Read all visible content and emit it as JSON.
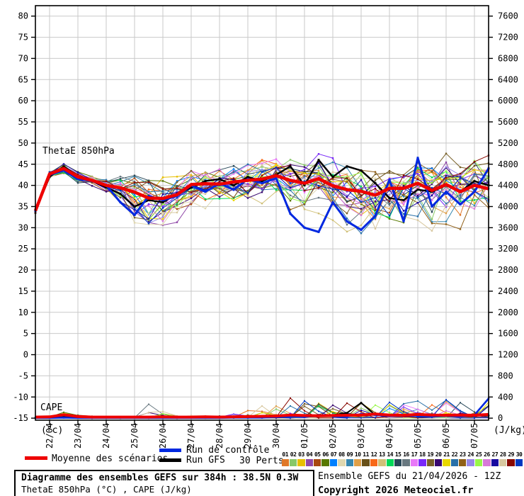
{
  "chart_data": {
    "type": "line",
    "title_annotation": "ThetaE 850hPa",
    "cape_annotation": "CAPE",
    "y_left_unit": "(°c)",
    "y_right_unit": "(J/kg)",
    "y_left_ticks": [
      80,
      75,
      70,
      65,
      60,
      55,
      50,
      45,
      40,
      35,
      30,
      25,
      20,
      15,
      10,
      5,
      0,
      -5,
      -10,
      -15
    ],
    "y_right_ticks": [
      7600,
      7200,
      6800,
      6400,
      6000,
      5600,
      5200,
      4800,
      4400,
      4000,
      3600,
      3200,
      2800,
      2400,
      2000,
      1600,
      1200,
      800,
      400,
      0
    ],
    "x_tick_labels": [
      "22/04",
      "23/04",
      "24/04",
      "25/04",
      "26/04",
      "27/04",
      "28/04",
      "29/04",
      "30/04",
      "01/05",
      "02/05",
      "03/05",
      "04/05",
      "05/05",
      "06/05",
      "07/05"
    ],
    "time_step_hours": 12,
    "forecast_hours": 384,
    "grid": true,
    "colors": {
      "mean": "#ee0000",
      "control": "#0028e0",
      "gfs": "#000000",
      "grid": "#c9c9c9",
      "axis": "#000000"
    },
    "thetae_850hpa_c": {
      "mean": [
        34,
        42.7,
        44,
        42,
        41.2,
        40,
        39.4,
        38.4,
        37,
        36.9,
        37.8,
        40.2,
        40.4,
        40.3,
        40.8,
        41.2,
        41.5,
        42.3,
        41.2,
        40.5,
        41.6,
        39.9,
        39,
        38.6,
        37.7,
        39.3,
        39.3,
        40.5,
        38.8,
        40.2,
        38.5,
        40,
        39.2
      ],
      "control": [
        34,
        42.5,
        43.5,
        41.5,
        41,
        40,
        36,
        33,
        37.5,
        36.5,
        37.5,
        40,
        38.5,
        40.5,
        39,
        41.5,
        40.5,
        41.7,
        33.3,
        30,
        29,
        36,
        31.5,
        29.5,
        32.8,
        41.3,
        31.5,
        46.5,
        35,
        38.5,
        35.5,
        38.5,
        44
      ],
      "gfs": [
        34,
        42,
        44.5,
        42,
        41,
        39.5,
        38,
        35,
        36.5,
        36,
        38,
        39.5,
        41,
        41.5,
        40,
        42,
        41,
        42.5,
        44.5,
        40,
        46,
        42,
        44.5,
        43.5,
        40.5,
        37,
        36.5,
        39,
        38.5,
        40,
        38.5,
        41,
        40
      ],
      "ensemble_min": [
        33,
        41.5,
        42.5,
        40,
        39,
        37.5,
        34,
        28,
        27,
        28,
        30,
        33,
        33,
        34,
        34,
        34.5,
        35,
        35,
        33,
        30,
        30,
        29,
        28,
        27,
        26,
        28,
        28.5,
        30,
        28,
        28,
        26,
        27,
        26
      ],
      "ensemble_max": [
        35,
        43.5,
        46,
        43.5,
        43.5,
        43,
        43.5,
        44,
        44,
        44.5,
        45,
        46,
        46,
        46,
        46.5,
        47,
        48,
        48.5,
        48,
        47,
        48,
        47,
        47,
        46.5,
        46,
        47,
        47,
        48,
        47,
        49,
        48,
        50,
        48
      ]
    },
    "cape_jkg": {
      "mean": [
        20,
        25,
        65,
        30,
        20,
        20,
        20,
        20,
        20,
        25,
        20,
        20,
        25,
        20,
        25,
        30,
        35,
        40,
        60,
        50,
        45,
        50,
        55,
        60,
        80,
        60,
        55,
        70,
        60,
        55,
        60,
        55,
        70
      ],
      "control": [
        5,
        5,
        10,
        5,
        5,
        5,
        5,
        5,
        5,
        5,
        5,
        5,
        5,
        5,
        10,
        10,
        10,
        20,
        30,
        20,
        60,
        40,
        30,
        80,
        60,
        40,
        50,
        40,
        30,
        40,
        30,
        60,
        370
      ],
      "gfs": [
        5,
        5,
        20,
        10,
        5,
        5,
        5,
        5,
        10,
        5,
        5,
        10,
        10,
        10,
        10,
        15,
        20,
        30,
        40,
        30,
        50,
        60,
        100,
        290,
        60,
        40,
        50,
        60,
        40,
        50,
        40,
        60,
        50
      ],
      "ensemble_max": [
        30,
        40,
        130,
        60,
        30,
        30,
        30,
        40,
        300,
        150,
        60,
        60,
        100,
        60,
        80,
        150,
        250,
        300,
        380,
        330,
        280,
        250,
        360,
        310,
        260,
        360,
        320,
        390,
        260,
        360,
        300,
        330,
        400
      ]
    },
    "perts": [
      {
        "id": "01",
        "color": "#e07828"
      },
      {
        "id": "02",
        "color": "#88c868"
      },
      {
        "id": "03",
        "color": "#e8c000"
      },
      {
        "id": "04",
        "color": "#9048a8"
      },
      {
        "id": "05",
        "color": "#a84810"
      },
      {
        "id": "06",
        "color": "#587800"
      },
      {
        "id": "07",
        "color": "#0080ff"
      },
      {
        "id": "08",
        "color": "#e0d8b0"
      },
      {
        "id": "09",
        "color": "#3888b0"
      },
      {
        "id": "10",
        "color": "#e0a048"
      },
      {
        "id": "11",
        "color": "#685018"
      },
      {
        "id": "12",
        "color": "#f86818"
      },
      {
        "id": "13",
        "color": "#d0c078"
      },
      {
        "id": "14",
        "color": "#00d858"
      },
      {
        "id": "15",
        "color": "#284858"
      },
      {
        "id": "16",
        "color": "#687880"
      },
      {
        "id": "17",
        "color": "#e878f8"
      },
      {
        "id": "18",
        "color": "#7828f8"
      },
      {
        "id": "19",
        "color": "#786028"
      },
      {
        "id": "20",
        "color": "#380870"
      },
      {
        "id": "21",
        "color": "#e8d800"
      },
      {
        "id": "22",
        "color": "#2870a8"
      },
      {
        "id": "23",
        "color": "#906018"
      },
      {
        "id": "24",
        "color": "#9888e8"
      },
      {
        "id": "25",
        "color": "#98f848"
      },
      {
        "id": "26",
        "color": "#d878d8"
      },
      {
        "id": "27",
        "color": "#1808a0"
      },
      {
        "id": "28",
        "color": "#d8c8a0"
      },
      {
        "id": "29",
        "color": "#880800"
      },
      {
        "id": "30",
        "color": "#0038c0"
      }
    ]
  },
  "legend": {
    "mean_label": "Moyenne des scénarios",
    "control_label": "Run de contrôle",
    "gfs_label": "Run GFS",
    "perts_label": "30 Perts."
  },
  "footer": {
    "title": "Diagramme des ensembles GEFS sur 384h : 38.5N 0.3W",
    "subtitle": "ThetaE 850hPa (°C) , CAPE (J/kg)",
    "run_info": "Ensemble GEFS du 21/04/2026 - 12Z",
    "copyright": "Copyright 2026 Meteociel.fr"
  }
}
